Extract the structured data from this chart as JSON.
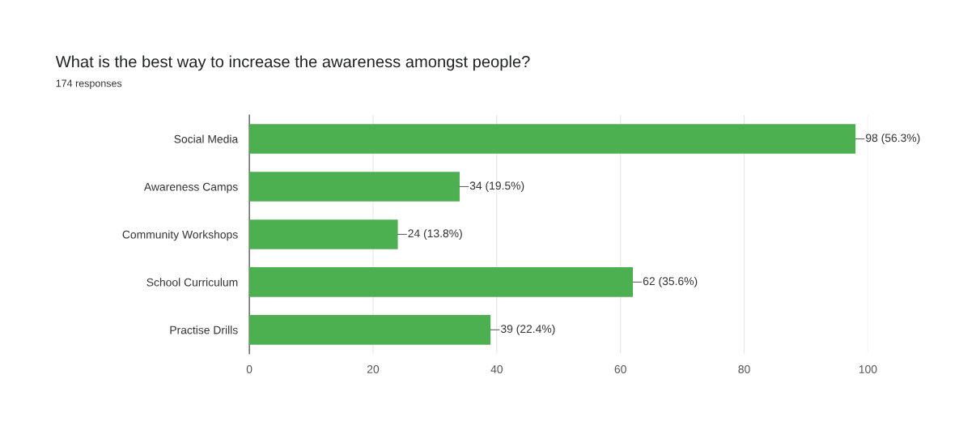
{
  "chart_data": {
    "type": "bar",
    "orientation": "horizontal",
    "title": "What is the best way to increase the awareness amongst people?",
    "subtitle": "174 responses",
    "categories": [
      "Social Media",
      "Awareness Camps",
      "Community Workshops",
      "School Curriculum",
      "Practise Drills"
    ],
    "values": [
      98,
      34,
      24,
      62,
      39
    ],
    "value_labels": [
      "98 (56.3%)",
      "34 (19.5%)",
      "24 (13.8%)",
      "62 (35.6%)",
      "39 (22.4%)"
    ],
    "color": "#4caf50",
    "xlim": [
      0,
      100
    ],
    "xticks": [
      0,
      20,
      40,
      60,
      80,
      100
    ],
    "grid": "x",
    "legend": false
  }
}
